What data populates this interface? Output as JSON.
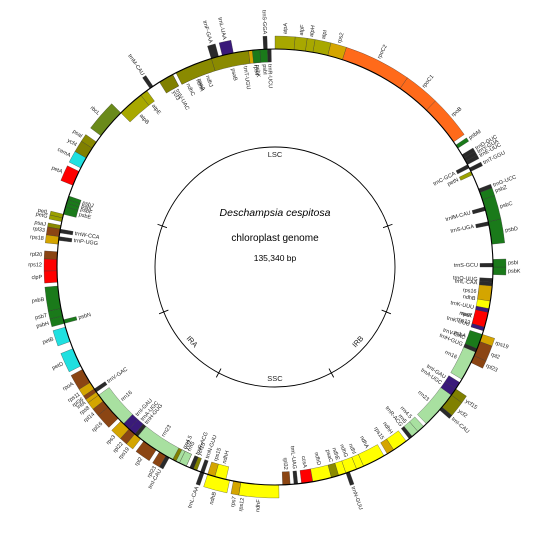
{
  "title_italic": "Deschampsia cespitosa",
  "subtitle": "chloroplast genome",
  "size_label": "135,340 bp",
  "regions": [
    {
      "name": "LSC",
      "angle": 0
    },
    {
      "name": "IRB",
      "angle": 132
    },
    {
      "name": "SSC",
      "angle": 180
    },
    {
      "name": "IRA",
      "angle": 228
    }
  ],
  "colors": {
    "photosystem_II": "#1a7a1a",
    "photosystem_I": "#8a8a00",
    "cytochrome": "#9aa000",
    "atp_synthase": "#a8a800",
    "rna_polymerase": "#ff6a1a",
    "ribosomal": "#d4a500",
    "ribosomal_large": "#8b4513",
    "ndh": "#ffff00",
    "rRNA": "#a8e0a0",
    "tRNA": "#2a2a2a",
    "intron": "#3a1a7a",
    "clp": "#ff0000",
    "ycf": "#808000",
    "other": "#20e0e0",
    "matK": "#ff0000",
    "rbcL": "#6a8a1a"
  },
  "genes": [
    {
      "name": "trnS-GGA",
      "start": 357,
      "end": 358,
      "side": "out",
      "cat": "tRNA"
    },
    {
      "name": "rps4",
      "start": 353,
      "end": 356,
      "side": "in",
      "cat": "ribosomal"
    },
    {
      "name": "trnT-UGU",
      "start": 351,
      "end": 352,
      "side": "in",
      "cat": "tRNA"
    },
    {
      "name": "trnL-UAA",
      "start": 346,
      "end": 349,
      "side": "out",
      "cat": "intron"
    },
    {
      "name": "trnF-GAA",
      "start": 343,
      "end": 345,
      "side": "out",
      "cat": "tRNA"
    },
    {
      "name": "ndhJ",
      "start": 339,
      "end": 342,
      "side": "in",
      "cat": "ndh"
    },
    {
      "name": "ndhK",
      "start": 336,
      "end": 339,
      "side": "in",
      "cat": "ndh"
    },
    {
      "name": "ndhC",
      "start": 333,
      "end": 336,
      "side": "in",
      "cat": "ndh"
    },
    {
      "name": "trnV-UAC",
      "start": 330,
      "end": 332,
      "side": "in",
      "cat": "intron"
    },
    {
      "name": "trnM-CAU",
      "start": 325,
      "end": 326,
      "side": "out",
      "cat": "tRNA"
    },
    {
      "name": "atpE",
      "start": 322,
      "end": 324,
      "side": "in",
      "cat": "atp_synthase"
    },
    {
      "name": "atpB",
      "start": 315,
      "end": 322,
      "side": "in",
      "cat": "atp_synthase"
    },
    {
      "name": "rbcL",
      "start": 307,
      "end": 315,
      "side": "out",
      "cat": "rbcL"
    },
    {
      "name": "psaI",
      "start": 303,
      "end": 305,
      "side": "out",
      "cat": "photosystem_I"
    },
    {
      "name": "ycf4",
      "start": 300,
      "end": 303,
      "side": "out",
      "cat": "ycf"
    },
    {
      "name": "cemA",
      "start": 297,
      "end": 300,
      "side": "out",
      "cat": "other"
    },
    {
      "name": "petA",
      "start": 292,
      "end": 296,
      "side": "out",
      "cat": "clp"
    },
    {
      "name": "psbJ",
      "start": 288,
      "end": 289,
      "side": "in",
      "cat": "photosystem_II"
    },
    {
      "name": "psbL",
      "start": 287,
      "end": 288,
      "side": "in",
      "cat": "photosystem_II"
    },
    {
      "name": "psbF",
      "start": 286,
      "end": 287,
      "side": "in",
      "cat": "photosystem_II"
    },
    {
      "name": "psbE",
      "start": 284,
      "end": 286,
      "side": "in",
      "cat": "photosystem_II"
    },
    {
      "name": "petL",
      "start": 283,
      "end": 284,
      "side": "out",
      "cat": "cytochrome"
    },
    {
      "name": "petG",
      "start": 282,
      "end": 283,
      "side": "out",
      "cat": "cytochrome"
    },
    {
      "name": "psaJ",
      "start": 280,
      "end": 281,
      "side": "out",
      "cat": "photosystem_I"
    },
    {
      "name": "rpl33",
      "start": 278,
      "end": 280,
      "side": "out",
      "cat": "ribosomal_large"
    },
    {
      "name": "rps18",
      "start": 276,
      "end": 278,
      "side": "out",
      "cat": "ribosomal"
    },
    {
      "name": "trnW-CCA",
      "start": 279,
      "end": 280,
      "side": "in",
      "cat": "tRNA"
    },
    {
      "name": "trnP-UGG",
      "start": 277,
      "end": 278,
      "side": "in",
      "cat": "tRNA"
    },
    {
      "name": "rpl20",
      "start": 272,
      "end": 274,
      "side": "out",
      "cat": "ribosomal_large"
    },
    {
      "name": "rps12",
      "start": 269,
      "end": 272,
      "side": "out",
      "cat": "clp"
    },
    {
      "name": "clpP",
      "start": 266,
      "end": 269,
      "side": "out",
      "cat": "clp"
    },
    {
      "name": "psbB",
      "start": 259,
      "end": 265,
      "side": "out",
      "cat": "photosystem_II"
    },
    {
      "name": "psbT",
      "start": 257,
      "end": 259,
      "side": "out",
      "cat": "photosystem_II"
    },
    {
      "name": "psbH",
      "start": 255,
      "end": 257,
      "side": "out",
      "cat": "photosystem_II"
    },
    {
      "name": "petB",
      "start": 250,
      "end": 254,
      "side": "out",
      "cat": "other"
    },
    {
      "name": "psbN",
      "start": 255,
      "end": 256,
      "side": "in",
      "cat": "photosystem_II"
    },
    {
      "name": "petD",
      "start": 243,
      "end": 248,
      "side": "out",
      "cat": "other"
    },
    {
      "name": "rpoA",
      "start": 238,
      "end": 242,
      "side": "out",
      "cat": "ribosomal_large"
    },
    {
      "name": "rps11",
      "start": 236,
      "end": 238,
      "side": "out",
      "cat": "ribosomal"
    },
    {
      "name": "rpl36",
      "start": 235,
      "end": 236,
      "side": "out",
      "cat": "ribosomal_large"
    },
    {
      "name": "infA",
      "start": 234,
      "end": 235,
      "side": "out",
      "cat": "ribosomal"
    },
    {
      "name": "rps8",
      "start": 232,
      "end": 234,
      "side": "out",
      "cat": "ribosomal"
    },
    {
      "name": "rpl14",
      "start": 230,
      "end": 232,
      "side": "out",
      "cat": "ribosomal_large"
    },
    {
      "name": "rpl16",
      "start": 226,
      "end": 230,
      "side": "out",
      "cat": "ribosomal_large"
    },
    {
      "name": "rps3",
      "start": 222,
      "end": 225,
      "side": "out",
      "cat": "ribosomal"
    },
    {
      "name": "rpl22",
      "start": 220,
      "end": 222,
      "side": "out",
      "cat": "ribosomal_large"
    },
    {
      "name": "rps19",
      "start": 218,
      "end": 220,
      "side": "out",
      "cat": "ribosomal"
    },
    {
      "name": "rpl2",
      "start": 213,
      "end": 217,
      "side": "out",
      "cat": "ribosomal_large"
    },
    {
      "name": "rpl23",
      "start": 210,
      "end": 212,
      "side": "out",
      "cat": "ribosomal_large"
    },
    {
      "name": "trnI-CAU",
      "start": 209,
      "end": 210,
      "side": "out",
      "cat": "tRNA"
    },
    {
      "name": "trnH-GUG",
      "start": 219,
      "end": 220,
      "side": "in",
      "cat": "tRNA"
    },
    {
      "name": "ycf2",
      "start": 204,
      "end": 208,
      "side": "in",
      "cat": "ycf"
    },
    {
      "name": "ycf15",
      "start": 201,
      "end": 203,
      "side": "in",
      "cat": "ycf"
    },
    {
      "name": "trnL-CAA",
      "start": 199,
      "end": 200,
      "side": "out",
      "cat": "tRNA"
    },
    {
      "name": "ndhB",
      "start": 192,
      "end": 198,
      "side": "out",
      "cat": "ndh"
    },
    {
      "name": "rps7",
      "start": 189,
      "end": 191,
      "side": "out",
      "cat": "ribosomal"
    },
    {
      "name": "rps12",
      "start": 187,
      "end": 189,
      "side": "out",
      "cat": "ribosomal"
    },
    {
      "name": "trnV-GAC",
      "start": 235,
      "end": 236,
      "side": "in",
      "cat": "tRNA"
    },
    {
      "name": "rrn16",
      "start": 224,
      "end": 234,
      "side": "in",
      "cat": "rRNA"
    },
    {
      "name": "trnI-GAU",
      "start": 222,
      "end": 224,
      "side": "in",
      "cat": "intron"
    },
    {
      "name": "trnA-UGC",
      "start": 220,
      "end": 222,
      "side": "in",
      "cat": "intron"
    },
    {
      "name": "rrn23",
      "start": 208,
      "end": 219,
      "side": "in",
      "cat": "rRNA"
    },
    {
      "name": "rrn4.5",
      "start": 206,
      "end": 207,
      "side": "in",
      "cat": "rRNA"
    },
    {
      "name": "rrn5",
      "start": 204,
      "end": 206,
      "side": "in",
      "cat": "rRNA"
    },
    {
      "name": "trnR-ACG",
      "start": 202,
      "end": 203,
      "side": "in",
      "cat": "tRNA"
    },
    {
      "name": "trnN-GUU",
      "start": 199,
      "end": 200,
      "side": "in",
      "cat": "tRNA"
    },
    {
      "name": "rps15",
      "start": 196,
      "end": 198,
      "side": "in",
      "cat": "ribosomal"
    },
    {
      "name": "ndhH",
      "start": 193,
      "end": 196,
      "side": "in",
      "cat": "ndh"
    },
    {
      "name": "ndhF",
      "start": 179,
      "end": 189,
      "side": "out",
      "cat": "ndh"
    },
    {
      "name": "rpl32",
      "start": 176,
      "end": 178,
      "side": "in",
      "cat": "ribosomal_large"
    },
    {
      "name": "trnL-UAG",
      "start": 174,
      "end": 175,
      "side": "in",
      "cat": "tRNA"
    },
    {
      "name": "ccsA",
      "start": 170,
      "end": 173,
      "side": "in",
      "cat": "clp"
    },
    {
      "name": "ndhD",
      "start": 165,
      "end": 170,
      "side": "in",
      "cat": "ndh"
    },
    {
      "name": "psaC",
      "start": 163,
      "end": 165,
      "side": "in",
      "cat": "photosystem_I"
    },
    {
      "name": "ndhE",
      "start": 161,
      "end": 163,
      "side": "in",
      "cat": "ndh"
    },
    {
      "name": "ndhG",
      "start": 158,
      "end": 161,
      "side": "in",
      "cat": "ndh"
    },
    {
      "name": "ndhI",
      "start": 156,
      "end": 158,
      "side": "in",
      "cat": "ndh"
    },
    {
      "name": "ndhA",
      "start": 150,
      "end": 156,
      "side": "in",
      "cat": "ndh"
    },
    {
      "name": "rps15",
      "start": 147,
      "end": 149,
      "side": "in",
      "cat": "ribosomal"
    },
    {
      "name": "ndhH",
      "start": 143,
      "end": 147,
      "side": "in",
      "cat": "ndh"
    },
    {
      "name": "trnN-GUU",
      "start": 160,
      "end": 161,
      "side": "out",
      "cat": "tRNA"
    },
    {
      "name": "trnR-ACG",
      "start": 141,
      "end": 142,
      "side": "in",
      "cat": "tRNA"
    },
    {
      "name": "rrn5",
      "start": 139,
      "end": 141,
      "side": "in",
      "cat": "rRNA"
    },
    {
      "name": "rrn4.5",
      "start": 137,
      "end": 139,
      "side": "in",
      "cat": "rRNA"
    },
    {
      "name": "rrn23",
      "start": 126,
      "end": 136,
      "side": "in",
      "cat": "rRNA"
    },
    {
      "name": "trnA-UGC",
      "start": 124,
      "end": 126,
      "side": "in",
      "cat": "intron"
    },
    {
      "name": "trnI-GAU",
      "start": 122,
      "end": 124,
      "side": "in",
      "cat": "intron"
    },
    {
      "name": "rrn16",
      "start": 112,
      "end": 121,
      "side": "in",
      "cat": "rRNA"
    },
    {
      "name": "trnV-GAC",
      "start": 110,
      "end": 111,
      "side": "in",
      "cat": "tRNA"
    },
    {
      "name": "rps12",
      "start": 105,
      "end": 107,
      "side": "in",
      "cat": "ribosomal"
    },
    {
      "name": "rps7",
      "start": 103,
      "end": 105,
      "side": "in",
      "cat": "ribosomal"
    },
    {
      "name": "ndhB",
      "start": 96,
      "end": 102,
      "side": "in",
      "cat": "ndh"
    },
    {
      "name": "trnL-CAA",
      "start": 94,
      "end": 95,
      "side": "in",
      "cat": "tRNA"
    },
    {
      "name": "ycf15",
      "start": 124,
      "end": 126,
      "side": "out",
      "cat": "ycf"
    },
    {
      "name": "ycf2",
      "start": 126,
      "end": 130,
      "side": "out",
      "cat": "ycf"
    },
    {
      "name": "trnI-CAU",
      "start": 130,
      "end": 131,
      "side": "out",
      "cat": "tRNA"
    },
    {
      "name": "rpl23",
      "start": 114,
      "end": 116,
      "side": "out",
      "cat": "ribosomal_large"
    },
    {
      "name": "rpl2",
      "start": 110,
      "end": 114,
      "side": "out",
      "cat": "ribosomal_large"
    },
    {
      "name": "rps19",
      "start": 108,
      "end": 110,
      "side": "out",
      "cat": "ribosomal"
    },
    {
      "name": "trnH-GUG",
      "start": 112,
      "end": 113,
      "side": "in",
      "cat": "tRNA"
    },
    {
      "name": "psbA",
      "start": 108,
      "end": 112,
      "side": "in",
      "cat": "photosystem_II"
    },
    {
      "name": "trnK-UUU",
      "start": 106,
      "end": 107,
      "side": "in",
      "cat": "intron"
    },
    {
      "name": "matK",
      "start": 102,
      "end": 106,
      "side": "in",
      "cat": "matK"
    },
    {
      "name": "trnK-UUU",
      "start": 101,
      "end": 102,
      "side": "in",
      "cat": "intron"
    },
    {
      "name": "rps16",
      "start": 95,
      "end": 99,
      "side": "in",
      "cat": "ribosomal"
    },
    {
      "name": "trnQ-UUG",
      "start": 93,
      "end": 94,
      "side": "in",
      "cat": "tRNA"
    },
    {
      "name": "psbK",
      "start": 90,
      "end": 92,
      "side": "out",
      "cat": "photosystem_II"
    },
    {
      "name": "psbI",
      "start": 88,
      "end": 90,
      "side": "out",
      "cat": "photosystem_II"
    },
    {
      "name": "trnS-GCU",
      "start": 89,
      "end": 90,
      "side": "in",
      "cat": "tRNA"
    },
    {
      "name": "psbD",
      "start": 78,
      "end": 84,
      "side": "out",
      "cat": "photosystem_II"
    },
    {
      "name": "psbC",
      "start": 72,
      "end": 78,
      "side": "out",
      "cat": "photosystem_II"
    },
    {
      "name": "psbZ",
      "start": 70,
      "end": 72,
      "side": "out",
      "cat": "photosystem_II"
    },
    {
      "name": "trnS-UGA",
      "start": 78,
      "end": 79,
      "side": "in",
      "cat": "tRNA"
    },
    {
      "name": "trnG-UCC",
      "start": 69,
      "end": 70,
      "side": "out",
      "cat": "tRNA"
    },
    {
      "name": "trnfM-CAU",
      "start": 74,
      "end": 75,
      "side": "in",
      "cat": "tRNA"
    },
    {
      "name": "trnT-GGU",
      "start": 63,
      "end": 64,
      "side": "out",
      "cat": "tRNA"
    },
    {
      "name": "trnE-UUC",
      "start": 61,
      "end": 62,
      "side": "out",
      "cat": "tRNA"
    },
    {
      "name": "trnY-GUA",
      "start": 60,
      "end": 61,
      "side": "out",
      "cat": "tRNA"
    },
    {
      "name": "trnD-GUC",
      "start": 59,
      "end": 60,
      "side": "out",
      "cat": "tRNA"
    },
    {
      "name": "psbM",
      "start": 56,
      "end": 57,
      "side": "out",
      "cat": "photosystem_II"
    },
    {
      "name": "petN",
      "start": 64,
      "end": 65,
      "side": "in",
      "cat": "cytochrome"
    },
    {
      "name": "trnC-GCA",
      "start": 62,
      "end": 63,
      "side": "in",
      "cat": "tRNA"
    },
    {
      "name": "rpoB",
      "start": 44,
      "end": 55,
      "side": "out",
      "cat": "rna_polymerase"
    },
    {
      "name": "rpoC1",
      "start": 35,
      "end": 44,
      "side": "out",
      "cat": "rna_polymerase"
    },
    {
      "name": "rpoC2",
      "start": 18,
      "end": 35,
      "side": "out",
      "cat": "rna_polymerase"
    },
    {
      "name": "rps2",
      "start": 14,
      "end": 18,
      "side": "out",
      "cat": "ribosomal"
    },
    {
      "name": "atpI",
      "start": 10,
      "end": 14,
      "side": "out",
      "cat": "atp_synthase"
    },
    {
      "name": "atpH",
      "start": 8,
      "end": 10,
      "side": "out",
      "cat": "atp_synthase"
    },
    {
      "name": "atpF",
      "start": 5,
      "end": 8,
      "side": "out",
      "cat": "atp_synthase"
    },
    {
      "name": "atpA",
      "start": 0,
      "end": 5,
      "side": "out",
      "cat": "atp_synthase"
    },
    {
      "name": "trnR-UCU",
      "start": 358,
      "end": 359,
      "side": "in",
      "cat": "tRNA"
    },
    {
      "name": "psbI",
      "start": 356,
      "end": 358,
      "side": "in",
      "cat": "photosystem_II"
    },
    {
      "name": "psbK",
      "start": 354,
      "end": 356,
      "side": "in",
      "cat": "photosystem_II"
    },
    {
      "name": "psaB",
      "start": 343,
      "end": 353,
      "side": "in",
      "cat": "photosystem_I"
    },
    {
      "name": "psaA",
      "start": 333,
      "end": 343,
      "side": "in",
      "cat": "photosystem_I"
    },
    {
      "name": "ycf3",
      "start": 328,
      "end": 332,
      "side": "in",
      "cat": "ycf"
    }
  ]
}
